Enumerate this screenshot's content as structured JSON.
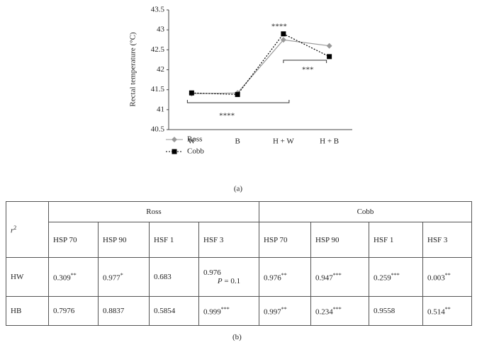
{
  "chart_data": {
    "type": "line",
    "ylabel": "Rectal temperature (°C)",
    "categories": [
      "W",
      "B",
      "H + W",
      "H + B"
    ],
    "series": [
      {
        "name": "Ross",
        "color": "#999999",
        "values": [
          41.4,
          41.42,
          42.75,
          42.6
        ]
      },
      {
        "name": "Cobb",
        "color": "#000000",
        "values": [
          41.42,
          41.38,
          42.9,
          42.33
        ]
      }
    ],
    "ylim": [
      40.5,
      43.5
    ],
    "yticks": [
      40.5,
      41,
      41.5,
      42,
      42.5,
      43,
      43.5
    ],
    "annotations": [
      "****",
      "***",
      "****"
    ],
    "caption": "(a)"
  },
  "table": {
    "corner": {
      "text": "r",
      "sup": "2"
    },
    "groups": [
      "Ross",
      "Cobb"
    ],
    "columns": [
      "HSP 70",
      "HSP 90",
      "HSF 1",
      "HSF 3",
      "HSP 70",
      "HSP 90",
      "HSF 1",
      "HSF 3"
    ],
    "rows": [
      {
        "label": "HW",
        "cells": [
          {
            "text": "0.309",
            "sup": "**"
          },
          {
            "text": "0.977",
            "sup": "*"
          },
          {
            "text": "0.683"
          },
          {
            "text": "0.976",
            "note": {
              "italic": "P",
              "rest": " = 0.1"
            }
          },
          {
            "text": "0.976",
            "sup": "**"
          },
          {
            "text": "0.947",
            "sup": "***"
          },
          {
            "text": "0.259",
            "sup": "***"
          },
          {
            "text": "0.003",
            "sup": "**"
          }
        ]
      },
      {
        "label": "HB",
        "cells": [
          {
            "text": "0.7976"
          },
          {
            "text": "0.8837"
          },
          {
            "text": "0.5854"
          },
          {
            "text": "0.999",
            "sup": "***"
          },
          {
            "text": "0.997",
            "sup": "**"
          },
          {
            "text": "0.234",
            "sup": "***"
          },
          {
            "text": "0.9558"
          },
          {
            "text": "0.514",
            "sup": "**"
          }
        ]
      }
    ],
    "caption": "(b)"
  }
}
